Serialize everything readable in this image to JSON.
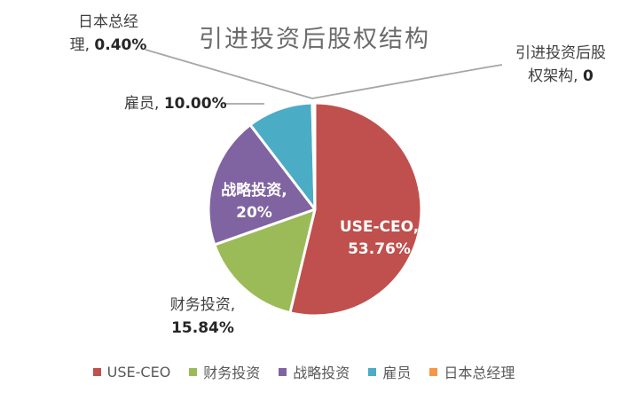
{
  "chart_data": {
    "type": "pie",
    "title": "引进投资后股权结构",
    "start_angle_deg": 0,
    "direction": "clockwise",
    "grid": false,
    "slices": [
      {
        "id": "use-ceo",
        "name": "USE-CEO",
        "value": 53.76,
        "color": "#C0504D",
        "data_label": "USE-CEO, 53.76%",
        "label_placement": "inside"
      },
      {
        "id": "financial-investment",
        "name": "财务投资",
        "value": 15.84,
        "color": "#9BBB59",
        "data_label": "财务投资, 15.84%",
        "label_placement": "outside"
      },
      {
        "id": "strategic-investment",
        "name": "战略投资",
        "value": 20,
        "color": "#8064A2",
        "data_label": "战略投资, 20%",
        "label_placement": "inside"
      },
      {
        "id": "employees",
        "name": "雇员",
        "value": 10,
        "color": "#4BACC6",
        "data_label": "雇员, 10.00%",
        "label_placement": "outside"
      },
      {
        "id": "japan-gm",
        "name": "日本总经理",
        "value": 0.4,
        "color": "#F79646",
        "data_label": "日本总经理, 0.40%",
        "label_placement": "outside"
      },
      {
        "id": "post-investment-equity",
        "name": "引进投资后股权架构",
        "value": 0,
        "data_label": "引进投资后股权架构, 0",
        "label_placement": "outside"
      }
    ],
    "legend": {
      "position": "bottom",
      "items": [
        "USE-CEO",
        "财务投资",
        "战略投资",
        "雇员",
        "日本总经理"
      ]
    }
  },
  "data_labels": {
    "use_ceo": {
      "line1": "USE-CEO,",
      "line2": "53.76%"
    },
    "financial": {
      "line1": "财务投资,",
      "line2": "15.84%"
    },
    "strategic": {
      "line1": "战略投资,",
      "line2": "20%"
    },
    "employees": {
      "name": "雇员, ",
      "value": "10.00%"
    },
    "japan_gm": {
      "line1": "日本总经",
      "line2_name": "理, ",
      "line2_value": "0.40%"
    },
    "structure": {
      "line1": "引进投资后股",
      "line2_name": "权架构, ",
      "line2_value": "0"
    }
  },
  "style": {
    "background_color": "#FFFFFF",
    "slice_border_color": "#FFFFFF",
    "leader_line_color": "#A6A6A6",
    "title_color": "#6B6B6B",
    "outside_label_color": "#3F3F3F",
    "outside_label_value_color": "#262626",
    "inside_label_color": "#FFFFFF",
    "legend_text_color": "#595959"
  }
}
